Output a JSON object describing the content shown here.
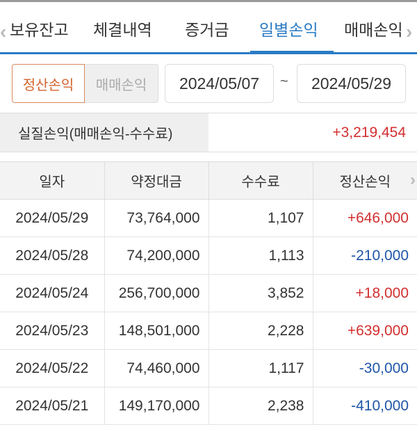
{
  "tabs": [
    {
      "label": "보유잔고"
    },
    {
      "label": "체결내역"
    },
    {
      "label": "증거금"
    },
    {
      "label": "일별손익",
      "active": true
    },
    {
      "label": "매매손익"
    }
  ],
  "filter": {
    "seg_active": "정산손익",
    "seg_inactive": "매매손익",
    "start_date": "2024/05/07",
    "separator": "~",
    "end_date": "2024/05/29"
  },
  "summary": {
    "label": "실질손익(매매손익-수수료)",
    "value": "+3,219,454"
  },
  "table": {
    "headers": [
      "일자",
      "약정대금",
      "수수료",
      "정산손익"
    ],
    "rows": [
      [
        "2024/05/29",
        "73,764,000",
        "1,107",
        "+646,000"
      ],
      [
        "2024/05/28",
        "74,200,000",
        "1,113",
        "-210,000"
      ],
      [
        "2024/05/24",
        "256,700,000",
        "3,852",
        "+18,000"
      ],
      [
        "2024/05/23",
        "148,501,000",
        "2,228",
        "+639,000"
      ],
      [
        "2024/05/22",
        "74,460,000",
        "1,117",
        "-30,000"
      ],
      [
        "2024/05/21",
        "149,170,000",
        "2,238",
        "-410,000"
      ]
    ]
  },
  "colors": {
    "accent": "#2a7bc4",
    "positive": "#d32f2f",
    "negative": "#1e56a8",
    "segment_active": "#d4622b"
  }
}
